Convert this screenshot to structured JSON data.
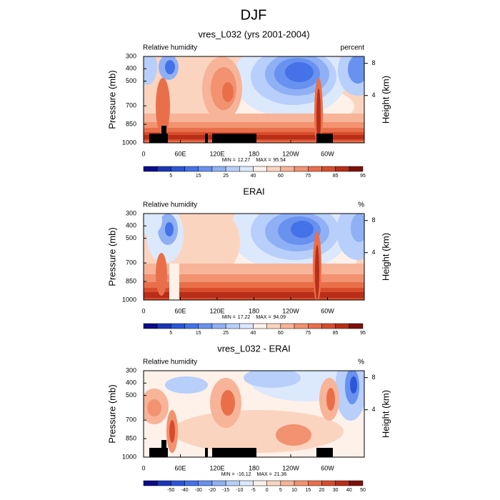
{
  "title": "DJF",
  "chart_data": [
    {
      "type": "contour",
      "title": "vres_L032 (yrs 2001-2004)",
      "left_label": "Relative humidity",
      "right_label": "percent",
      "ylabel": "Pressure (mb)",
      "y2label": "Height (km)",
      "xlim": [
        0,
        360
      ],
      "xticks": [
        0,
        {
          "value": 60,
          "label": "60E"
        },
        {
          "value": 120,
          "label": "120E"
        },
        180,
        {
          "value": 240,
          "label": "120W"
        },
        {
          "value": 300,
          "label": "60W"
        }
      ],
      "ylim": [
        1000,
        300
      ],
      "yticks": [
        300,
        400,
        500,
        700,
        850,
        1000
      ],
      "y2ticks": [
        8,
        4
      ],
      "min_label": "MIN =",
      "min": 12.27,
      "max_label": "MAX =",
      "max": 95.54,
      "colorbar": {
        "colors": [
          "#0b0b8a",
          "#1a35b8",
          "#2b56d8",
          "#4472e8",
          "#6891f0",
          "#8fb0f5",
          "#b7cffa",
          "#dce8fc",
          "#fdf1ea",
          "#fbd4c0",
          "#f7b498",
          "#f29270",
          "#e96f4b",
          "#d84c2c",
          "#b82e18",
          "#7f0f0a"
        ],
        "labels": [
          5,
          15,
          25,
          40,
          60,
          75,
          85,
          95
        ]
      }
    },
    {
      "type": "contour",
      "title": "ERAI",
      "left_label": "Relative humidity",
      "right_label": "%",
      "ylabel": "Pressure (mb)",
      "y2label": "Height (km)",
      "xlim": [
        0,
        360
      ],
      "xticks": [
        0,
        {
          "value": 60,
          "label": "60E"
        },
        {
          "value": 120,
          "label": "120E"
        },
        180,
        {
          "value": 240,
          "label": "120W"
        },
        {
          "value": 300,
          "label": "60W"
        }
      ],
      "ylim": [
        1000,
        300
      ],
      "yticks": [
        300,
        400,
        500,
        700,
        850,
        1000
      ],
      "y2ticks": [
        8,
        4
      ],
      "min_label": "MIN =",
      "min": 17.22,
      "max_label": "MAX =",
      "max": 94.09,
      "colorbar": {
        "colors": [
          "#0b0b8a",
          "#1a35b8",
          "#2b56d8",
          "#4472e8",
          "#6891f0",
          "#8fb0f5",
          "#b7cffa",
          "#dce8fc",
          "#fdf1ea",
          "#fbd4c0",
          "#f7b498",
          "#f29270",
          "#e96f4b",
          "#d84c2c",
          "#b82e18",
          "#7f0f0a"
        ],
        "labels": [
          5,
          15,
          25,
          40,
          60,
          75,
          85,
          95
        ]
      }
    },
    {
      "type": "contour",
      "title": "vres_L032 - ERAI",
      "left_label": "Relative humidity",
      "right_label": "%",
      "ylabel": "Pressure (mb)",
      "y2label": "Height (km)",
      "xlim": [
        0,
        360
      ],
      "xticks": [
        0,
        {
          "value": 60,
          "label": "60E"
        },
        {
          "value": 120,
          "label": "120E"
        },
        180,
        {
          "value": 240,
          "label": "120W"
        },
        {
          "value": 300,
          "label": "60W"
        }
      ],
      "ylim": [
        1000,
        300
      ],
      "yticks": [
        300,
        400,
        500,
        700,
        850,
        1000
      ],
      "y2ticks": [
        8,
        4
      ],
      "min_label": "MIN =",
      "min": -16.12,
      "max_label": "MAX =",
      "max": 21.36,
      "colorbar": {
        "colors": [
          "#0b0b8a",
          "#1a35b8",
          "#2b56d8",
          "#4472e8",
          "#6891f0",
          "#8fb0f5",
          "#b7cffa",
          "#dce8fc",
          "#fdf1ea",
          "#fbd4c0",
          "#f7b498",
          "#f29270",
          "#e96f4b",
          "#d84c2c",
          "#b82e18",
          "#7f0f0a"
        ],
        "labels": [
          -50,
          -40,
          -30,
          -20,
          -15,
          -10,
          -5,
          0,
          5,
          10,
          15,
          20,
          30,
          40,
          50
        ]
      }
    }
  ]
}
